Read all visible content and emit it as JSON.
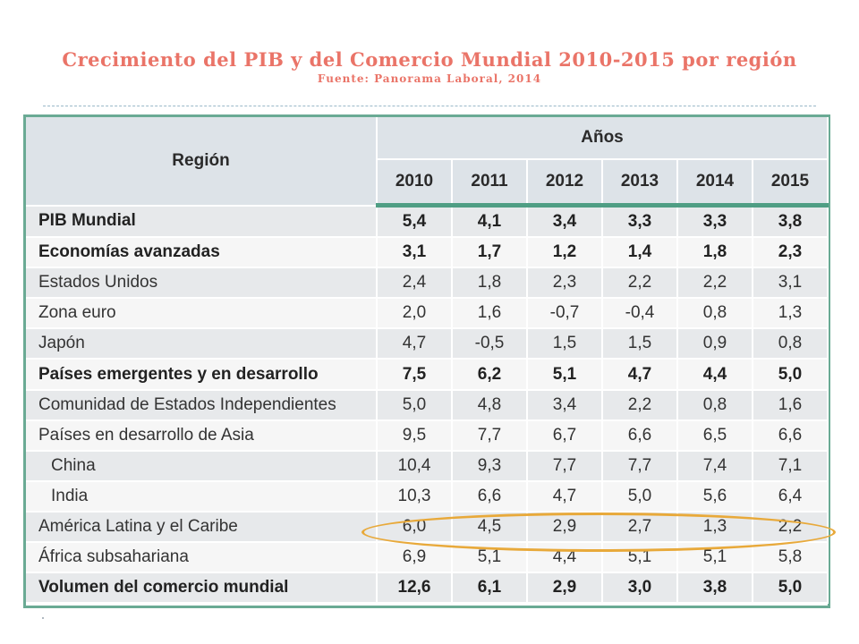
{
  "header": {
    "title": "Crecimiento del PIB y del Comercio Mundial 2010-2015 por región",
    "subtitle": "Fuente: Panorama Laboral, 2014"
  },
  "table": {
    "region_header": "Región",
    "years_header": "Años",
    "years": [
      "2010",
      "2011",
      "2012",
      "2013",
      "2014",
      "2015"
    ],
    "rows": [
      {
        "label": "PIB Mundial",
        "bold": true,
        "indent": false,
        "values": [
          "5,4",
          "4,1",
          "3,4",
          "3,3",
          "3,3",
          "3,8"
        ]
      },
      {
        "label": "Economías avanzadas",
        "bold": true,
        "indent": false,
        "values": [
          "3,1",
          "1,7",
          "1,2",
          "1,4",
          "1,8",
          "2,3"
        ]
      },
      {
        "label": "Estados Unidos",
        "bold": false,
        "indent": false,
        "values": [
          "2,4",
          "1,8",
          "2,3",
          "2,2",
          "2,2",
          "3,1"
        ]
      },
      {
        "label": "Zona euro",
        "bold": false,
        "indent": false,
        "values": [
          "2,0",
          "1,6",
          "-0,7",
          "-0,4",
          "0,8",
          "1,3"
        ]
      },
      {
        "label": "Japón",
        "bold": false,
        "indent": false,
        "values": [
          "4,7",
          "-0,5",
          "1,5",
          "1,5",
          "0,9",
          "0,8"
        ]
      },
      {
        "label": "Países emergentes y en desarrollo",
        "bold": true,
        "indent": false,
        "values": [
          "7,5",
          "6,2",
          "5,1",
          "4,7",
          "4,4",
          "5,0"
        ]
      },
      {
        "label": "Comunidad de Estados Independientes",
        "bold": false,
        "indent": false,
        "values": [
          "5,0",
          "4,8",
          "3,4",
          "2,2",
          "0,8",
          "1,6"
        ]
      },
      {
        "label": "Países en desarrollo de Asia",
        "bold": false,
        "indent": false,
        "values": [
          "9,5",
          "7,7",
          "6,7",
          "6,6",
          "6,5",
          "6,6"
        ]
      },
      {
        "label": "China",
        "bold": false,
        "indent": true,
        "values": [
          "10,4",
          "9,3",
          "7,7",
          "7,7",
          "7,4",
          "7,1"
        ]
      },
      {
        "label": "India",
        "bold": false,
        "indent": true,
        "values": [
          "10,3",
          "6,6",
          "4,7",
          "5,0",
          "5,6",
          "6,4"
        ]
      },
      {
        "label": "América Latina y el Caribe",
        "bold": false,
        "indent": false,
        "highlighted": true,
        "values": [
          "6,0",
          "4,5",
          "2,9",
          "2,7",
          "1,3",
          "2,2"
        ]
      },
      {
        "label": "África subsahariana",
        "bold": false,
        "indent": false,
        "values": [
          "6,9",
          "5,1",
          "4,4",
          "5,1",
          "5,1",
          "5,8"
        ]
      },
      {
        "label": "Volumen del comercio mundial",
        "bold": true,
        "indent": false,
        "values": [
          "12,6",
          "6,1",
          "2,9",
          "3,0",
          "3,8",
          "5,0"
        ]
      }
    ]
  },
  "colors": {
    "title": "#ea7468",
    "frame": "#6aaa94",
    "header_bg": "#dde3e8",
    "highlight_ellipse": "#e8a93a"
  }
}
